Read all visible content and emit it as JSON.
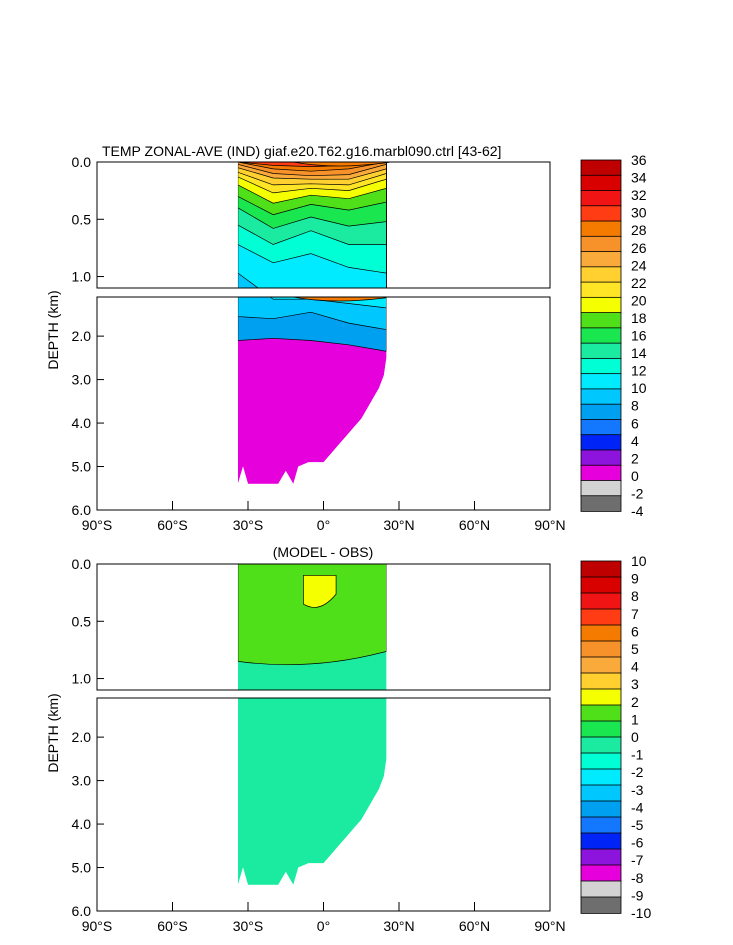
{
  "chart_data": [
    {
      "type": "heatmap",
      "title": "TEMP ZONAL-AVE (IND) giaf.e20.T62.g16.marbl090.ctrl [43-62]",
      "ylabel": "DEPTH (km)",
      "xlabel": "",
      "xlim": [
        -90,
        90
      ],
      "ylim_upper": [
        0,
        1.1
      ],
      "ylim_lower": [
        1.1,
        6.0
      ],
      "x_ticks": [
        -90,
        -60,
        -30,
        0,
        30,
        60,
        90
      ],
      "x_tick_labels": [
        "90°S",
        "60°S",
        "30°S",
        "0°",
        "30°N",
        "60°N",
        "90°N"
      ],
      "y_ticks_upper": [
        0.0,
        0.5,
        1.0
      ],
      "y_tick_labels_upper": [
        "0.0",
        "0.5",
        "1.0"
      ],
      "y_ticks_lower": [
        2.0,
        3.0,
        4.0,
        5.0,
        6.0
      ],
      "y_tick_labels_lower": [
        "2.0",
        "3.0",
        "4.0",
        "5.0",
        "6.0"
      ],
      "colorbar_labels": [
        "36",
        "34",
        "32",
        "30",
        "28",
        "26",
        "24",
        "22",
        "20",
        "18",
        "16",
        "14",
        "12",
        "10",
        "8",
        "6",
        "4",
        "2",
        "0",
        "-2",
        "-4"
      ],
      "colorbar_colors": [
        "#bf0000",
        "#d90000",
        "#f01414",
        "#ff3c14",
        "#f47a00",
        "#f79129",
        "#faaa3a",
        "#ffd030",
        "#ffe526",
        "#f5ff00",
        "#4fe01a",
        "#1ae650",
        "#1aeba0",
        "#00ffd5",
        "#00ebff",
        "#00c8ff",
        "#00a0f0",
        "#1478ff",
        "#0024f5",
        "#8c14dc",
        "#e600dc",
        "#d3d3d3",
        "#6e6e6e"
      ],
      "contours": [
        {
          "level": 28,
          "depth": [
            0.0,
            0.03,
            0.04,
            0.03,
            0.0
          ]
        },
        {
          "level": 26,
          "depth": [
            0.0,
            0.06,
            0.08,
            0.06,
            0.0
          ]
        },
        {
          "level": 24,
          "depth": [
            0.02,
            0.1,
            0.12,
            0.11,
            0.02
          ]
        },
        {
          "level": 22,
          "depth": [
            0.05,
            0.14,
            0.15,
            0.15,
            0.06
          ]
        },
        {
          "level": 20,
          "depth": [
            0.09,
            0.2,
            0.19,
            0.2,
            0.1
          ]
        },
        {
          "level": 18,
          "depth": [
            0.13,
            0.27,
            0.23,
            0.25,
            0.15
          ]
        },
        {
          "level": 16,
          "depth": [
            0.2,
            0.36,
            0.29,
            0.32,
            0.23
          ]
        },
        {
          "level": 14,
          "depth": [
            0.3,
            0.46,
            0.37,
            0.42,
            0.35
          ]
        },
        {
          "level": 12,
          "depth": [
            0.4,
            0.58,
            0.48,
            0.56,
            0.52
          ]
        },
        {
          "level": 10,
          "depth": [
            0.55,
            0.72,
            0.6,
            0.72,
            0.72
          ]
        },
        {
          "level": 8,
          "depth": [
            0.72,
            0.88,
            0.8,
            0.92,
            0.97
          ]
        },
        {
          "level": 6,
          "depth": [
            0.97,
            1.15,
            1.15,
            1.25,
            1.35
          ]
        },
        {
          "level": 4,
          "depth": [
            1.55,
            1.6,
            1.45,
            1.7,
            1.85
          ]
        },
        {
          "level": 2,
          "depth": [
            2.1,
            2.05,
            2.1,
            2.2,
            2.35
          ]
        }
      ],
      "contour_lats": [
        -34,
        -20,
        -5,
        10,
        25
      ]
    },
    {
      "type": "heatmap",
      "title": "(MODEL - OBS)",
      "ylabel": "DEPTH (km)",
      "xlabel": "",
      "xlim": [
        -90,
        90
      ],
      "ylim_upper": [
        0,
        1.1
      ],
      "ylim_lower": [
        1.1,
        6.0
      ],
      "x_ticks": [
        -90,
        -60,
        -30,
        0,
        30,
        60,
        90
      ],
      "x_tick_labels": [
        "90°S",
        "60°S",
        "30°S",
        "0°",
        "30°N",
        "60°N",
        "90°N"
      ],
      "y_ticks_upper": [
        0.0,
        0.5,
        1.0
      ],
      "y_tick_labels_upper": [
        "0.0",
        "0.5",
        "1.0"
      ],
      "y_ticks_lower": [
        2.0,
        3.0,
        4.0,
        5.0,
        6.0
      ],
      "y_tick_labels_lower": [
        "2.0",
        "3.0",
        "4.0",
        "5.0",
        "6.0"
      ],
      "colorbar_labels": [
        "10",
        "9",
        "8",
        "7",
        "6",
        "5",
        "4",
        "3",
        "2",
        "1",
        "0",
        "-1",
        "-2",
        "-3",
        "-4",
        "-5",
        "-6",
        "-7",
        "-8",
        "-9",
        "-10"
      ],
      "colorbar_colors": [
        "#bf0000",
        "#d90000",
        "#f01414",
        "#ff3c14",
        "#f47a00",
        "#f79129",
        "#faaa3a",
        "#ffd030",
        "#f5ff00",
        "#4fe01a",
        "#1ae650",
        "#1aeba0",
        "#00ffd5",
        "#00ebff",
        "#00c8ff",
        "#00a0f0",
        "#1478ff",
        "#0024f5",
        "#8c14dc",
        "#e600dc",
        "#d3d3d3",
        "#6e6e6e"
      ],
      "regions": [
        {
          "name": "warm-bias-upper",
          "value_range": [
            0,
            1
          ],
          "lat": [
            -34,
            25
          ],
          "depth": [
            0.0,
            0.85
          ]
        },
        {
          "name": "warm-core",
          "value_range": [
            1,
            2
          ],
          "lat": [
            -8,
            5
          ],
          "depth": [
            0.1,
            0.35
          ]
        },
        {
          "name": "deep-neutral",
          "value_range": [
            -1,
            0
          ],
          "lat": [
            -34,
            25
          ],
          "depth": [
            0.85,
            5.4
          ]
        }
      ]
    }
  ],
  "ocean_bottom": {
    "lats": [
      -34,
      -32,
      -30,
      -28,
      -25,
      -22,
      -18,
      -15,
      -12,
      -10,
      -6,
      -3,
      0,
      3,
      6,
      9,
      12,
      15,
      18,
      20,
      22,
      24,
      25
    ],
    "depth": [
      5.4,
      5.0,
      5.4,
      5.4,
      5.4,
      5.4,
      5.4,
      5.1,
      5.4,
      5.0,
      4.9,
      4.9,
      4.9,
      4.7,
      4.5,
      4.3,
      4.1,
      3.9,
      3.6,
      3.4,
      3.2,
      2.9,
      2.5
    ]
  },
  "colors": {
    "land": "#ffffff",
    "frame": "#000000"
  }
}
